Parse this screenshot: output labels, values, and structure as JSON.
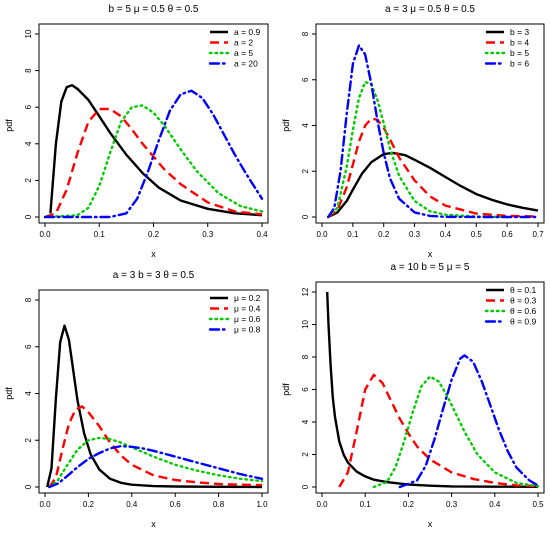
{
  "chart_data": [
    {
      "type": "line",
      "title": "b = 5  μ = 0.5  θ = 0.5",
      "xlabel": "x",
      "ylabel": "pdf",
      "xlim": [
        0,
        0.4
      ],
      "ylim": [
        0,
        10
      ],
      "xticks": [
        "0.0",
        "0.1",
        "0.2",
        "0.3",
        "0.4"
      ],
      "yticks": [
        "0",
        "2",
        "4",
        "6",
        "8",
        "10"
      ],
      "legend_position": "top-right",
      "grid": false,
      "series": [
        {
          "name": "a = 0.9",
          "color": "#000000",
          "dash": "solid",
          "x": [
            0.01,
            0.02,
            0.03,
            0.04,
            0.05,
            0.06,
            0.08,
            0.1,
            0.12,
            0.15,
            0.18,
            0.21,
            0.25,
            0.3,
            0.35,
            0.4
          ],
          "y": [
            0.2,
            4.0,
            6.3,
            7.1,
            7.2,
            7.0,
            6.4,
            5.5,
            4.6,
            3.4,
            2.4,
            1.6,
            0.9,
            0.45,
            0.2,
            0.1
          ]
        },
        {
          "name": "a = 2",
          "color": "#ff0000",
          "dash": "dashed",
          "x": [
            0.0,
            0.02,
            0.04,
            0.06,
            0.08,
            0.1,
            0.12,
            0.14,
            0.16,
            0.18,
            0.2,
            0.22,
            0.25,
            0.3,
            0.35,
            0.4
          ],
          "y": [
            0,
            0.2,
            1.5,
            3.5,
            5.2,
            5.9,
            5.9,
            5.5,
            4.8,
            4.0,
            3.3,
            2.6,
            1.8,
            0.8,
            0.3,
            0.15
          ]
        },
        {
          "name": "a = 5",
          "color": "#00cc00",
          "dash": "dotted",
          "x": [
            0.0,
            0.06,
            0.08,
            0.1,
            0.12,
            0.14,
            0.16,
            0.18,
            0.2,
            0.22,
            0.25,
            0.28,
            0.32,
            0.36,
            0.4
          ],
          "y": [
            0,
            0.1,
            0.5,
            1.7,
            3.5,
            5.2,
            6.0,
            6.1,
            5.7,
            5.0,
            3.7,
            2.5,
            1.3,
            0.6,
            0.3
          ]
        },
        {
          "name": "a = 20",
          "color": "#0000ff",
          "dash": "dashdot",
          "x": [
            0.0,
            0.12,
            0.15,
            0.17,
            0.19,
            0.21,
            0.23,
            0.25,
            0.27,
            0.29,
            0.31,
            0.33,
            0.35,
            0.37,
            0.4
          ],
          "y": [
            0,
            0,
            0.2,
            1.0,
            2.5,
            4.2,
            5.8,
            6.7,
            6.9,
            6.5,
            5.6,
            4.5,
            3.4,
            2.4,
            1.0
          ]
        }
      ]
    },
    {
      "type": "line",
      "title": "a = 3  μ = 0.5  θ = 0.5",
      "xlabel": "x",
      "ylabel": "pdf",
      "xlim": [
        0,
        0.7
      ],
      "ylim": [
        0,
        8
      ],
      "xticks": [
        "0.0",
        "0.1",
        "0.2",
        "0.3",
        "0.4",
        "0.5",
        "0.6",
        "0.7"
      ],
      "yticks": [
        "0",
        "2",
        "4",
        "6",
        "8"
      ],
      "legend_position": "top-right",
      "grid": false,
      "series": [
        {
          "name": "b = 3",
          "color": "#000000",
          "dash": "solid",
          "x": [
            0.02,
            0.05,
            0.08,
            0.1,
            0.13,
            0.16,
            0.2,
            0.23,
            0.27,
            0.3,
            0.35,
            0.4,
            0.45,
            0.5,
            0.55,
            0.6,
            0.65,
            0.7
          ],
          "y": [
            0.0,
            0.2,
            0.7,
            1.2,
            1.9,
            2.4,
            2.75,
            2.8,
            2.7,
            2.5,
            2.15,
            1.75,
            1.35,
            1.0,
            0.75,
            0.55,
            0.4,
            0.28
          ]
        },
        {
          "name": "b = 4",
          "color": "#ff0000",
          "dash": "dashed",
          "x": [
            0.02,
            0.05,
            0.08,
            0.1,
            0.12,
            0.14,
            0.16,
            0.18,
            0.2,
            0.22,
            0.25,
            0.3,
            0.35,
            0.4,
            0.5,
            0.6,
            0.7
          ],
          "y": [
            0.0,
            0.3,
            1.3,
            2.3,
            3.3,
            4.0,
            4.3,
            4.25,
            3.9,
            3.4,
            2.6,
            1.6,
            0.9,
            0.5,
            0.15,
            0.05,
            0.02
          ]
        },
        {
          "name": "b = 5",
          "color": "#00cc00",
          "dash": "dotted",
          "x": [
            0.02,
            0.05,
            0.08,
            0.1,
            0.12,
            0.14,
            0.16,
            0.18,
            0.2,
            0.22,
            0.25,
            0.3,
            0.35,
            0.4,
            0.5,
            0.6
          ],
          "y": [
            0.0,
            0.4,
            2.2,
            3.8,
            5.2,
            5.9,
            5.8,
            5.1,
            4.1,
            3.0,
            1.8,
            0.7,
            0.25,
            0.1,
            0.02,
            0.0
          ]
        },
        {
          "name": "b = 6",
          "color": "#0000ff",
          "dash": "dashdot",
          "x": [
            0.02,
            0.04,
            0.06,
            0.08,
            0.1,
            0.12,
            0.14,
            0.16,
            0.18,
            0.2,
            0.22,
            0.25,
            0.3,
            0.35,
            0.4,
            0.5,
            0.6,
            0.7
          ],
          "y": [
            0.0,
            0.4,
            2.0,
            4.5,
            6.7,
            7.5,
            7.1,
            5.8,
            4.2,
            2.8,
            1.7,
            0.8,
            0.2,
            0.05,
            0.01,
            0.0,
            0.0,
            0.0
          ]
        }
      ]
    },
    {
      "type": "line",
      "title": "a = 3  b = 3  θ = 0.5",
      "xlabel": "x",
      "ylabel": "pdf",
      "xlim": [
        0,
        1
      ],
      "ylim": [
        0,
        8
      ],
      "xticks": [
        "0.0",
        "0.2",
        "0.4",
        "0.6",
        "0.8",
        "1.0"
      ],
      "yticks": [
        "0",
        "2",
        "4",
        "6",
        "8"
      ],
      "legend_position": "top-right",
      "grid": false,
      "series": [
        {
          "name": "μ = 0.2",
          "color": "#000000",
          "dash": "solid",
          "x": [
            0.01,
            0.03,
            0.05,
            0.07,
            0.09,
            0.11,
            0.13,
            0.15,
            0.18,
            0.21,
            0.25,
            0.3,
            0.35,
            0.4,
            0.5,
            0.6,
            0.8,
            1.0
          ],
          "y": [
            0.0,
            0.8,
            3.8,
            6.2,
            6.9,
            6.3,
            5.0,
            3.7,
            2.3,
            1.4,
            0.75,
            0.35,
            0.18,
            0.1,
            0.04,
            0.02,
            0.01,
            0.0
          ]
        },
        {
          "name": "μ = 0.4",
          "color": "#ff0000",
          "dash": "dashed",
          "x": [
            0.02,
            0.05,
            0.08,
            0.11,
            0.14,
            0.17,
            0.2,
            0.25,
            0.3,
            0.35,
            0.4,
            0.5,
            0.6,
            0.7,
            0.8,
            0.9,
            1.0
          ],
          "y": [
            0.0,
            0.4,
            1.6,
            2.7,
            3.3,
            3.45,
            3.2,
            2.6,
            1.9,
            1.35,
            0.95,
            0.5,
            0.3,
            0.2,
            0.13,
            0.1,
            0.08
          ]
        },
        {
          "name": "μ = 0.6",
          "color": "#00cc00",
          "dash": "dotted",
          "x": [
            0.02,
            0.06,
            0.1,
            0.15,
            0.2,
            0.25,
            0.3,
            0.35,
            0.4,
            0.5,
            0.6,
            0.7,
            0.8,
            0.9,
            1.0
          ],
          "y": [
            0.0,
            0.3,
            0.9,
            1.6,
            2.0,
            2.1,
            2.05,
            1.9,
            1.7,
            1.3,
            0.95,
            0.7,
            0.5,
            0.35,
            0.25
          ]
        },
        {
          "name": "μ = 0.8",
          "color": "#0000ff",
          "dash": "dashdot",
          "x": [
            0.02,
            0.06,
            0.1,
            0.15,
            0.2,
            0.25,
            0.3,
            0.35,
            0.4,
            0.45,
            0.5,
            0.6,
            0.7,
            0.8,
            0.9,
            1.0
          ],
          "y": [
            0.0,
            0.15,
            0.45,
            0.85,
            1.2,
            1.45,
            1.65,
            1.75,
            1.72,
            1.65,
            1.55,
            1.3,
            1.05,
            0.8,
            0.55,
            0.35
          ]
        }
      ]
    },
    {
      "type": "line",
      "title": "a = 10  b = 5  μ = 5",
      "xlabel": "x",
      "ylabel": "pdf",
      "xlim": [
        0,
        0.5
      ],
      "ylim": [
        0,
        12
      ],
      "xticks": [
        "0.0",
        "0.1",
        "0.2",
        "0.3",
        "0.4",
        "0.5"
      ],
      "yticks": [
        "0",
        "2",
        "4",
        "6",
        "8",
        "10",
        "12"
      ],
      "legend_position": "top-right",
      "grid": false,
      "series": [
        {
          "name": "θ = 0.1",
          "color": "#000000",
          "dash": "solid",
          "x": [
            0.012,
            0.015,
            0.02,
            0.025,
            0.03,
            0.04,
            0.05,
            0.06,
            0.08,
            0.1,
            0.12,
            0.15,
            0.2,
            0.25,
            0.3,
            0.4,
            0.5
          ],
          "y": [
            12.0,
            10.0,
            7.5,
            5.5,
            4.3,
            2.8,
            2.0,
            1.5,
            0.95,
            0.65,
            0.45,
            0.3,
            0.15,
            0.08,
            0.04,
            0.02,
            0.01
          ]
        },
        {
          "name": "θ = 0.3",
          "color": "#ff0000",
          "dash": "dashed",
          "x": [
            0.04,
            0.06,
            0.08,
            0.1,
            0.12,
            0.14,
            0.16,
            0.18,
            0.2,
            0.22,
            0.25,
            0.3,
            0.35,
            0.4,
            0.45,
            0.5
          ],
          "y": [
            0.0,
            0.9,
            3.4,
            6.0,
            6.9,
            6.4,
            5.3,
            4.2,
            3.3,
            2.5,
            1.7,
            0.9,
            0.5,
            0.25,
            0.1,
            0.05
          ]
        },
        {
          "name": "θ = 0.6",
          "color": "#00cc00",
          "dash": "dotted",
          "x": [
            0.12,
            0.15,
            0.17,
            0.19,
            0.21,
            0.23,
            0.25,
            0.27,
            0.29,
            0.31,
            0.33,
            0.36,
            0.4,
            0.45,
            0.5
          ],
          "y": [
            0.0,
            0.3,
            1.2,
            2.8,
            4.6,
            6.2,
            6.8,
            6.5,
            5.6,
            4.5,
            3.4,
            2.0,
            0.9,
            0.25,
            0.05
          ]
        },
        {
          "name": "θ = 0.9",
          "color": "#0000ff",
          "dash": "dashdot",
          "x": [
            0.18,
            0.22,
            0.24,
            0.26,
            0.28,
            0.3,
            0.32,
            0.33,
            0.35,
            0.37,
            0.39,
            0.41,
            0.43,
            0.45,
            0.48,
            0.5
          ],
          "y": [
            0.0,
            0.4,
            1.3,
            2.9,
            4.8,
            6.6,
            7.9,
            8.1,
            7.7,
            6.5,
            5.0,
            3.5,
            2.2,
            1.2,
            0.4,
            0.1
          ]
        }
      ]
    }
  ]
}
